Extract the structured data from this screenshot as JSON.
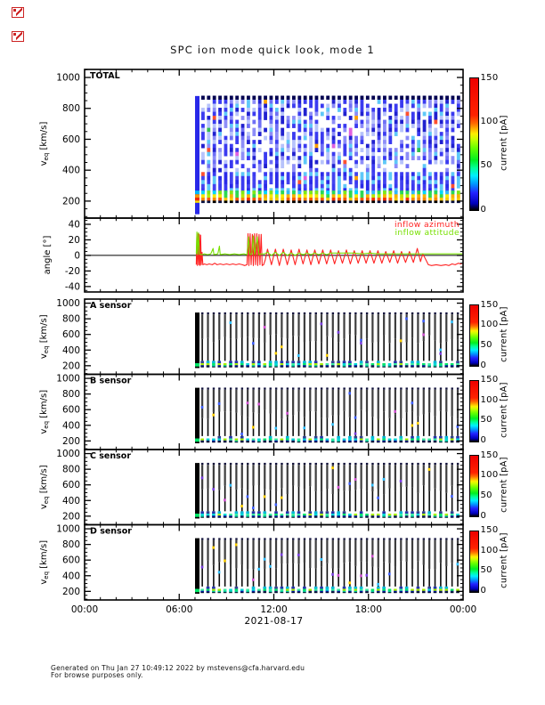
{
  "header": {
    "title": "SPC ion mode quick look, mode 1"
  },
  "icons": {
    "top_left_markers": [
      "broken-image-icon",
      "broken-image-icon"
    ]
  },
  "x_axis": {
    "tick_labels": [
      "00:00",
      "06:00",
      "12:00",
      "18:00",
      "00:00"
    ],
    "tick_hours": [
      0,
      6,
      12,
      18,
      24
    ],
    "date_label": "2021-08-17"
  },
  "colorbar": {
    "label": "current [pA]",
    "ticks": [
      0,
      50,
      100,
      150
    ],
    "range": [
      0,
      150
    ],
    "gradient": [
      [
        "0%",
        "#000000"
      ],
      [
        "5%",
        "#0000bb"
      ],
      [
        "13%",
        "#2222ff"
      ],
      [
        "20%",
        "#0099ff"
      ],
      [
        "26%",
        "#00eeff"
      ],
      [
        "32%",
        "#00ff99"
      ],
      [
        "38%",
        "#00ee22"
      ],
      [
        "47%",
        "#66ff00"
      ],
      [
        "54%",
        "#ccff00"
      ],
      [
        "58%",
        "#ffee00"
      ],
      [
        "62%",
        "#ffaa00"
      ],
      [
        "66%",
        "#ff6600"
      ],
      [
        "72%",
        "#ff2200"
      ],
      [
        "100%",
        "#ee0000"
      ]
    ]
  },
  "angle_legend": [
    {
      "label": "inflow azimuth",
      "color": "#ff2222"
    },
    {
      "label": "inflow attitude",
      "color": "#77e000"
    }
  ],
  "footer": {
    "line1": "Generated on Thu Jan 27 10:49:12 2022 by mstevens@cfa.harvard.edu",
    "line2": "For browse purposes only."
  },
  "chart_data": {
    "type": "heatmap",
    "title": "SPC ion mode quick look, mode 1",
    "date": "2021-08-17",
    "x_range_hours": [
      0,
      24
    ],
    "data_start_hour": 7.06,
    "data_end_hour": 23.95,
    "stripe_period_hours": 0.36,
    "current_range_pA": [
      0,
      150
    ],
    "panels": [
      {
        "id": "total",
        "label": "TOTAL",
        "kind": "spectrogram",
        "variant": "color",
        "seed": 7,
        "ylabel": {
          "main": "v",
          "sub": "eq",
          "rest": " [km/s]"
        },
        "yticks": [
          200,
          400,
          600,
          800,
          1000
        ],
        "yminor_step": 50,
        "yrange": [
          90,
          1052
        ],
        "v_top": 880,
        "v_band": [
          268,
          244,
          222,
          203,
          189
        ]
      },
      {
        "id": "angle",
        "label": "",
        "kind": "line",
        "ylabel": {
          "main": "angle [°]"
        },
        "yticks": [
          -40,
          -20,
          0,
          20,
          40
        ],
        "yminor_step": 5,
        "yrange": [
          -47,
          48
        ],
        "series": [
          {
            "name": "inflow azimuth",
            "color": "#ff2222",
            "points": [
              [
                7.08,
                -12
              ],
              [
                7.12,
                28
              ],
              [
                7.16,
                -13
              ],
              [
                7.2,
                28
              ],
              [
                7.24,
                -12
              ],
              [
                7.28,
                27
              ],
              [
                7.32,
                -13
              ],
              [
                7.36,
                26
              ],
              [
                7.4,
                -12
              ],
              [
                7.45,
                4
              ],
              [
                7.5,
                -12
              ],
              [
                7.6,
                -11
              ],
              [
                7.75,
                -12
              ],
              [
                7.9,
                -11
              ],
              [
                8.1,
                -12
              ],
              [
                8.25,
                -10
              ],
              [
                8.4,
                -12
              ],
              [
                8.6,
                -11
              ],
              [
                8.8,
                -12
              ],
              [
                9.0,
                -11
              ],
              [
                9.2,
                -12
              ],
              [
                9.4,
                -11
              ],
              [
                9.6,
                -12
              ],
              [
                9.8,
                -11
              ],
              [
                10.0,
                -12
              ],
              [
                10.15,
                -13
              ],
              [
                10.3,
                -12
              ],
              [
                10.36,
                28
              ],
              [
                10.42,
                -13
              ],
              [
                10.5,
                28
              ],
              [
                10.56,
                -12
              ],
              [
                10.64,
                27
              ],
              [
                10.7,
                -13
              ],
              [
                10.78,
                28
              ],
              [
                10.84,
                -12
              ],
              [
                10.92,
                28
              ],
              [
                10.98,
                -13
              ],
              [
                11.06,
                27
              ],
              [
                11.12,
                -12
              ],
              [
                11.2,
                27
              ],
              [
                11.26,
                -13
              ],
              [
                11.35,
                -12
              ],
              [
                11.45,
                -6
              ],
              [
                11.6,
                8
              ],
              [
                11.85,
                -12
              ],
              [
                12.1,
                8
              ],
              [
                12.35,
                -13
              ],
              [
                12.6,
                8
              ],
              [
                12.85,
                -12
              ],
              [
                13.1,
                7
              ],
              [
                13.35,
                -12
              ],
              [
                13.6,
                8
              ],
              [
                13.85,
                -11
              ],
              [
                14.1,
                7
              ],
              [
                14.35,
                -12
              ],
              [
                14.6,
                7
              ],
              [
                14.85,
                -11
              ],
              [
                15.1,
                7
              ],
              [
                15.35,
                -11
              ],
              [
                15.6,
                7
              ],
              [
                15.85,
                -11
              ],
              [
                16.1,
                6
              ],
              [
                16.35,
                -10
              ],
              [
                16.6,
                7
              ],
              [
                16.85,
                -11
              ],
              [
                17.1,
                6
              ],
              [
                17.35,
                -10
              ],
              [
                17.6,
                6
              ],
              [
                17.85,
                -10
              ],
              [
                18.1,
                6
              ],
              [
                18.35,
                -10
              ],
              [
                18.6,
                6
              ],
              [
                18.85,
                -10
              ],
              [
                19.1,
                5
              ],
              [
                19.35,
                -9
              ],
              [
                19.6,
                6
              ],
              [
                19.85,
                -10
              ],
              [
                20.1,
                5
              ],
              [
                20.35,
                -9
              ],
              [
                20.6,
                5
              ],
              [
                20.85,
                -9
              ],
              [
                21.1,
                9
              ],
              [
                21.3,
                -8
              ],
              [
                21.45,
                2
              ],
              [
                21.6,
                -4
              ],
              [
                21.8,
                -12
              ],
              [
                22.0,
                -13
              ],
              [
                22.3,
                -12
              ],
              [
                22.6,
                -13
              ],
              [
                22.9,
                -12
              ],
              [
                23.1,
                -13
              ],
              [
                23.3,
                -11
              ],
              [
                23.5,
                -12
              ],
              [
                23.7,
                -10
              ],
              [
                23.85,
                -11
              ],
              [
                23.95,
                -10
              ]
            ]
          },
          {
            "name": "inflow attitude",
            "color": "#77e000",
            "points": [
              [
                7.08,
                2
              ],
              [
                7.12,
                30
              ],
              [
                7.16,
                1
              ],
              [
                7.22,
                29
              ],
              [
                7.28,
                2
              ],
              [
                7.4,
                1
              ],
              [
                7.6,
                2
              ],
              [
                7.8,
                1
              ],
              [
                8.0,
                2
              ],
              [
                8.15,
                9
              ],
              [
                8.2,
                1
              ],
              [
                8.45,
                2
              ],
              [
                8.55,
                12
              ],
              [
                8.6,
                1
              ],
              [
                8.9,
                2
              ],
              [
                9.2,
                1
              ],
              [
                9.5,
                2
              ],
              [
                9.8,
                1
              ],
              [
                10.1,
                2
              ],
              [
                10.3,
                1
              ],
              [
                10.4,
                24
              ],
              [
                10.48,
                1
              ],
              [
                10.6,
                2
              ],
              [
                10.7,
                25
              ],
              [
                10.78,
                1
              ],
              [
                10.95,
                24
              ],
              [
                11.05,
                1
              ],
              [
                11.2,
                2
              ],
              [
                11.4,
                2
              ],
              [
                11.6,
                4
              ],
              [
                11.85,
                0
              ],
              [
                12.1,
                4
              ],
              [
                12.35,
                0
              ],
              [
                12.6,
                4
              ],
              [
                12.85,
                0
              ],
              [
                13.1,
                3
              ],
              [
                13.35,
                0
              ],
              [
                13.6,
                3
              ],
              [
                13.85,
                1
              ],
              [
                14.1,
                3
              ],
              [
                14.35,
                1
              ],
              [
                14.6,
                3
              ],
              [
                14.85,
                1
              ],
              [
                15.1,
                3
              ],
              [
                15.35,
                1
              ],
              [
                15.6,
                3
              ],
              [
                16.1,
                3
              ],
              [
                16.6,
                3
              ],
              [
                17.1,
                3
              ],
              [
                17.6,
                2
              ],
              [
                18.1,
                3
              ],
              [
                18.6,
                2
              ],
              [
                19.1,
                2
              ],
              [
                19.6,
                2
              ],
              [
                20.1,
                2
              ],
              [
                20.6,
                2
              ],
              [
                21.1,
                2
              ],
              [
                21.6,
                2
              ],
              [
                22.1,
                2
              ],
              [
                22.6,
                2
              ],
              [
                23.1,
                2
              ],
              [
                23.6,
                2
              ],
              [
                23.95,
                2
              ]
            ]
          }
        ]
      },
      {
        "id": "A",
        "label": "A sensor",
        "kind": "spectrogram",
        "variant": "dark",
        "seed": 11,
        "ylabel": {
          "main": "v",
          "sub": "eq",
          "rest": " [km/s]"
        },
        "yticks": [
          200,
          400,
          600,
          800,
          1000
        ],
        "yminor_step": 50,
        "yrange": [
          90,
          1052
        ],
        "v_top": 880,
        "v_band": [
          262,
          232,
          207,
          190,
          182
        ]
      },
      {
        "id": "B",
        "label": "B sensor",
        "kind": "spectrogram",
        "variant": "dark",
        "seed": 23,
        "ylabel": {
          "main": "v",
          "sub": "eq",
          "rest": " [km/s]"
        },
        "yticks": [
          200,
          400,
          600,
          800,
          1000
        ],
        "yminor_step": 50,
        "yrange": [
          90,
          1052
        ],
        "v_top": 880,
        "v_band": [
          262,
          232,
          207,
          190,
          182
        ]
      },
      {
        "id": "C",
        "label": "C sensor",
        "kind": "spectrogram",
        "variant": "dark",
        "seed": 37,
        "ylabel": {
          "main": "v",
          "sub": "eq",
          "rest": " [km/s]"
        },
        "yticks": [
          200,
          400,
          600,
          800,
          1000
        ],
        "yminor_step": 50,
        "yrange": [
          90,
          1052
        ],
        "v_top": 880,
        "v_band": [
          262,
          232,
          207,
          190,
          182
        ]
      },
      {
        "id": "D",
        "label": "D sensor",
        "kind": "spectrogram",
        "variant": "dark",
        "seed": 51,
        "x_labels": true,
        "ylabel": {
          "main": "v",
          "sub": "eq",
          "rest": " [km/s]"
        },
        "yticks": [
          200,
          400,
          600,
          800,
          1000
        ],
        "yminor_step": 50,
        "yrange": [
          90,
          1052
        ],
        "v_top": 880,
        "v_band": [
          262,
          232,
          207,
          190,
          182
        ]
      }
    ],
    "palettes": {
      "total_blues": [
        "#3a3af0",
        "#8d8df8",
        "#b7c3fb",
        "#5ec8f8",
        "#2020cf",
        "#6f6ff5"
      ],
      "total_blues_low": [
        "#2a2ae8",
        "#4343f0",
        "#5ec8f8",
        "#3a3af0"
      ],
      "total_accents": [
        "#ff5030",
        "#ffa000",
        "#30c050",
        "#e060e0"
      ],
      "total_band_rows": [
        [
          "#30b8f8",
          "#00d8f8",
          "#28d858",
          "#80e818"
        ],
        [
          "#f8e800",
          "#b8e800",
          "#f8b000",
          "#38d848"
        ],
        [
          "#f85800",
          "#f88800",
          "#f8c800",
          "#f83000"
        ],
        [
          "#000830",
          "#081040",
          "#000000"
        ]
      ],
      "total_first_column": {
        "body": "#2828e8",
        "band": [
          "#00b8f8",
          "#f89800",
          "#f82800",
          "#f8e000",
          "#001040"
        ]
      },
      "sensor_stripe": {
        "cap": "#10103a",
        "upper": "#3e3e3e",
        "lower": "#0c0c0c"
      },
      "sensor_dots": [
        "#7a3fe0",
        "#3f5fff",
        "#d050d0",
        "#ffd000",
        "#30c0ff"
      ],
      "sensor_band_rows": [
        [
          "#2233aa",
          "#00b8d8",
          "#304090"
        ],
        [
          "#00e868",
          "#38f0a0",
          "#a8f000",
          "#00d8d8"
        ],
        [
          "#0018a0",
          "#00c8a0",
          "#102060"
        ],
        [
          "#000820"
        ]
      ],
      "sensor_first_column": "#000000"
    }
  }
}
